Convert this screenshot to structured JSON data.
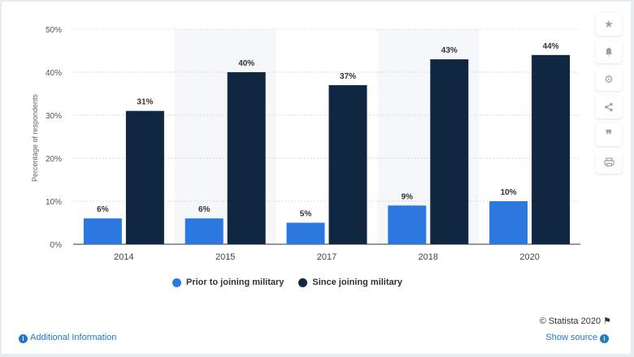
{
  "chart_data": {
    "type": "bar",
    "categories": [
      "2014",
      "2015",
      "2017",
      "2018",
      "2020"
    ],
    "series": [
      {
        "name": "Prior to joining military",
        "values": [
          6,
          6,
          5,
          9,
          10
        ],
        "color": "#2b78df"
      },
      {
        "name": "Since joining military",
        "values": [
          31,
          40,
          37,
          43,
          44
        ],
        "color": "#0f2740"
      }
    ],
    "ylabel": "Percentage of respondents",
    "xlabel": "",
    "ylim": [
      0,
      50
    ],
    "yticks": [
      "0%",
      "10%",
      "20%",
      "30%",
      "40%",
      "50%"
    ],
    "value_suffix": "%",
    "grid": true,
    "legend": "bottom"
  },
  "legend": {
    "items": [
      {
        "label": "Prior to joining military",
        "color": "#2b78df"
      },
      {
        "label": "Since joining military",
        "color": "#0f2740"
      }
    ]
  },
  "footer": {
    "credit": "© Statista 2020",
    "additional_info": "Additional Information",
    "show_source": "Show source"
  },
  "toolbar": {
    "icons": [
      "star-icon",
      "bell-icon",
      "gear-icon",
      "share-icon",
      "quote-icon",
      "print-icon"
    ]
  }
}
